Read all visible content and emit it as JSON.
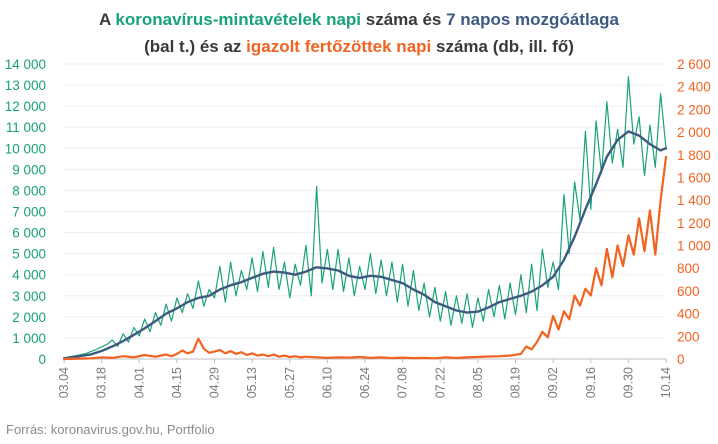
{
  "title": {
    "line1": [
      {
        "text": "A ",
        "role": "plain"
      },
      {
        "text": "koronavírus-mintavételek napi",
        "role": "samples"
      },
      {
        "text": " száma és ",
        "role": "plain"
      },
      {
        "text": "7 napos mozgóátlaga",
        "role": "avg"
      }
    ],
    "line2": [
      {
        "text": "(bal t.) és az ",
        "role": "plain"
      },
      {
        "text": "igazolt fertőzöttek napi",
        "role": "confirmed"
      },
      {
        "text": " száma (db, ill. fő)",
        "role": "plain"
      }
    ]
  },
  "source": "Forrás: koronavirus.gov.hu, Portfolio",
  "colors": {
    "samples": "#1aa37a",
    "avg": "#3d5a80",
    "confirmed": "#f26322",
    "title_text": "#3a3a3a",
    "axis": "#bfbfbf",
    "grid": "#ededed"
  },
  "chart_data": {
    "type": "line",
    "x_start": "2020-03-04",
    "days": 225,
    "x_tick_labels": [
      "03.04",
      "03.18",
      "04.01",
      "04.15",
      "04.29",
      "05.13",
      "05.27",
      "06.10",
      "06.24",
      "07.08",
      "07.22",
      "08.05",
      "08.19",
      "09.02",
      "09.16",
      "09.30",
      "10.14"
    ],
    "y_left": {
      "ticks": [
        "0",
        "1 000",
        "2 000",
        "3 000",
        "4 000",
        "5 000",
        "6 000",
        "7 000",
        "8 000",
        "9 000",
        "10 000",
        "11 000",
        "12 000",
        "13 000",
        "14 000"
      ],
      "lim": [
        0,
        14000
      ]
    },
    "y_right": {
      "ticks": [
        "0",
        "200",
        "400",
        "600",
        "800",
        "1 000",
        "1 200",
        "1 400",
        "1 600",
        "1 800",
        "2 000",
        "2 200",
        "2 400",
        "2 600"
      ],
      "lim": [
        0,
        2600
      ]
    },
    "series": [
      {
        "key": "samples",
        "axis": "left",
        "points": [
          [
            0,
            60
          ],
          [
            4,
            150
          ],
          [
            8,
            250
          ],
          [
            12,
            450
          ],
          [
            16,
            700
          ],
          [
            18,
            900
          ],
          [
            20,
            600
          ],
          [
            22,
            1200
          ],
          [
            24,
            800
          ],
          [
            26,
            1500
          ],
          [
            28,
            1100
          ],
          [
            30,
            1900
          ],
          [
            32,
            1300
          ],
          [
            34,
            2200
          ],
          [
            36,
            1600
          ],
          [
            38,
            2600
          ],
          [
            40,
            1800
          ],
          [
            42,
            2900
          ],
          [
            44,
            2200
          ],
          [
            46,
            3100
          ],
          [
            48,
            2400
          ],
          [
            50,
            3700
          ],
          [
            52,
            2500
          ],
          [
            54,
            3300
          ],
          [
            56,
            2900
          ],
          [
            58,
            4400
          ],
          [
            60,
            2700
          ],
          [
            62,
            4600
          ],
          [
            64,
            3000
          ],
          [
            66,
            4200
          ],
          [
            68,
            3300
          ],
          [
            70,
            4800
          ],
          [
            72,
            3200
          ],
          [
            74,
            5100
          ],
          [
            76,
            3400
          ],
          [
            78,
            5300
          ],
          [
            80,
            3300
          ],
          [
            82,
            4600
          ],
          [
            84,
            2900
          ],
          [
            86,
            4500
          ],
          [
            88,
            3500
          ],
          [
            90,
            5400
          ],
          [
            92,
            3000
          ],
          [
            94,
            8200
          ],
          [
            96,
            3600
          ],
          [
            98,
            5200
          ],
          [
            100,
            3300
          ],
          [
            102,
            5200
          ],
          [
            104,
            3200
          ],
          [
            106,
            4800
          ],
          [
            108,
            3000
          ],
          [
            110,
            4400
          ],
          [
            112,
            3300
          ],
          [
            114,
            5000
          ],
          [
            116,
            3100
          ],
          [
            118,
            4700
          ],
          [
            120,
            3000
          ],
          [
            122,
            4600
          ],
          [
            124,
            2700
          ],
          [
            126,
            4500
          ],
          [
            128,
            2500
          ],
          [
            130,
            4200
          ],
          [
            132,
            2300
          ],
          [
            134,
            3600
          ],
          [
            136,
            2000
          ],
          [
            138,
            3400
          ],
          [
            140,
            1800
          ],
          [
            142,
            3200
          ],
          [
            144,
            1600
          ],
          [
            146,
            3000
          ],
          [
            148,
            1700
          ],
          [
            150,
            3100
          ],
          [
            152,
            1500
          ],
          [
            154,
            2900
          ],
          [
            156,
            1800
          ],
          [
            158,
            3300
          ],
          [
            160,
            2000
          ],
          [
            162,
            3500
          ],
          [
            164,
            1900
          ],
          [
            166,
            3600
          ],
          [
            168,
            2100
          ],
          [
            170,
            4000
          ],
          [
            172,
            2200
          ],
          [
            174,
            4500
          ],
          [
            176,
            2300
          ],
          [
            178,
            5200
          ],
          [
            180,
            3400
          ],
          [
            182,
            4600
          ],
          [
            184,
            3300
          ],
          [
            186,
            7800
          ],
          [
            188,
            5000
          ],
          [
            190,
            8400
          ],
          [
            192,
            6600
          ],
          [
            194,
            10800
          ],
          [
            196,
            7100
          ],
          [
            198,
            11300
          ],
          [
            200,
            8800
          ],
          [
            202,
            12200
          ],
          [
            204,
            9300
          ],
          [
            206,
            10900
          ],
          [
            208,
            9100
          ],
          [
            210,
            13400
          ],
          [
            212,
            10200
          ],
          [
            214,
            11500
          ],
          [
            216,
            8700
          ],
          [
            218,
            11100
          ],
          [
            220,
            9100
          ],
          [
            222,
            12600
          ],
          [
            224,
            10000
          ]
        ]
      },
      {
        "key": "avg",
        "axis": "left",
        "points": [
          [
            0,
            30
          ],
          [
            6,
            140
          ],
          [
            10,
            220
          ],
          [
            14,
            380
          ],
          [
            18,
            600
          ],
          [
            22,
            850
          ],
          [
            26,
            1150
          ],
          [
            30,
            1450
          ],
          [
            34,
            1800
          ],
          [
            38,
            2150
          ],
          [
            42,
            2400
          ],
          [
            46,
            2700
          ],
          [
            50,
            2900
          ],
          [
            54,
            3000
          ],
          [
            58,
            3300
          ],
          [
            62,
            3500
          ],
          [
            66,
            3650
          ],
          [
            70,
            3850
          ],
          [
            74,
            4050
          ],
          [
            78,
            4150
          ],
          [
            82,
            4100
          ],
          [
            86,
            4000
          ],
          [
            90,
            4150
          ],
          [
            94,
            4350
          ],
          [
            98,
            4300
          ],
          [
            102,
            4200
          ],
          [
            106,
            3950
          ],
          [
            110,
            3850
          ],
          [
            114,
            3950
          ],
          [
            118,
            3900
          ],
          [
            122,
            3750
          ],
          [
            126,
            3600
          ],
          [
            130,
            3300
          ],
          [
            134,
            3050
          ],
          [
            138,
            2700
          ],
          [
            142,
            2500
          ],
          [
            146,
            2300
          ],
          [
            150,
            2200
          ],
          [
            154,
            2250
          ],
          [
            158,
            2450
          ],
          [
            162,
            2700
          ],
          [
            166,
            2850
          ],
          [
            170,
            3000
          ],
          [
            174,
            3200
          ],
          [
            178,
            3500
          ],
          [
            182,
            3900
          ],
          [
            186,
            4700
          ],
          [
            190,
            5800
          ],
          [
            194,
            7100
          ],
          [
            198,
            8300
          ],
          [
            202,
            9600
          ],
          [
            206,
            10400
          ],
          [
            210,
            10800
          ],
          [
            214,
            10600
          ],
          [
            218,
            10200
          ],
          [
            222,
            9900
          ],
          [
            224,
            10000
          ]
        ]
      },
      {
        "key": "confirmed",
        "axis": "right",
        "points": [
          [
            0,
            0
          ],
          [
            10,
            5
          ],
          [
            14,
            15
          ],
          [
            18,
            10
          ],
          [
            22,
            25
          ],
          [
            26,
            15
          ],
          [
            30,
            35
          ],
          [
            34,
            20
          ],
          [
            38,
            40
          ],
          [
            40,
            25
          ],
          [
            42,
            45
          ],
          [
            44,
            75
          ],
          [
            46,
            50
          ],
          [
            48,
            65
          ],
          [
            50,
            180
          ],
          [
            52,
            90
          ],
          [
            54,
            55
          ],
          [
            56,
            65
          ],
          [
            58,
            80
          ],
          [
            60,
            50
          ],
          [
            62,
            70
          ],
          [
            64,
            45
          ],
          [
            66,
            60
          ],
          [
            68,
            35
          ],
          [
            70,
            50
          ],
          [
            72,
            30
          ],
          [
            74,
            40
          ],
          [
            76,
            25
          ],
          [
            78,
            40
          ],
          [
            80,
            20
          ],
          [
            82,
            30
          ],
          [
            84,
            18
          ],
          [
            86,
            25
          ],
          [
            88,
            15
          ],
          [
            90,
            20
          ],
          [
            94,
            15
          ],
          [
            98,
            10
          ],
          [
            102,
            15
          ],
          [
            106,
            12
          ],
          [
            110,
            18
          ],
          [
            114,
            10
          ],
          [
            118,
            14
          ],
          [
            122,
            8
          ],
          [
            126,
            12
          ],
          [
            130,
            8
          ],
          [
            134,
            10
          ],
          [
            138,
            6
          ],
          [
            142,
            15
          ],
          [
            146,
            9
          ],
          [
            150,
            14
          ],
          [
            154,
            18
          ],
          [
            158,
            22
          ],
          [
            162,
            25
          ],
          [
            166,
            30
          ],
          [
            170,
            45
          ],
          [
            172,
            110
          ],
          [
            174,
            85
          ],
          [
            176,
            150
          ],
          [
            178,
            240
          ],
          [
            180,
            190
          ],
          [
            182,
            380
          ],
          [
            184,
            260
          ],
          [
            186,
            420
          ],
          [
            188,
            350
          ],
          [
            190,
            560
          ],
          [
            192,
            470
          ],
          [
            194,
            620
          ],
          [
            196,
            560
          ],
          [
            198,
            800
          ],
          [
            200,
            650
          ],
          [
            202,
            970
          ],
          [
            204,
            720
          ],
          [
            206,
            1000
          ],
          [
            208,
            820
          ],
          [
            210,
            1090
          ],
          [
            212,
            920
          ],
          [
            214,
            1240
          ],
          [
            216,
            950
          ],
          [
            218,
            1310
          ],
          [
            220,
            920
          ],
          [
            222,
            1400
          ],
          [
            224,
            1780
          ]
        ]
      }
    ]
  }
}
